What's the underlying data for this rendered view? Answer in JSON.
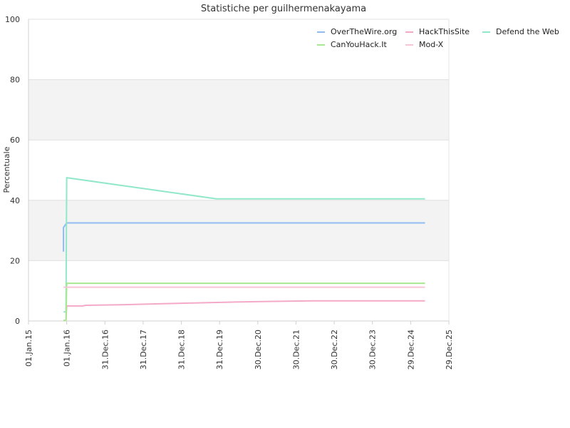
{
  "chart_data": {
    "type": "line",
    "title": "Statistiche per guilhermenakayama",
    "ylabel": "Percentuale",
    "xlabel": "",
    "ylim": [
      0,
      100
    ],
    "yticks": [
      0,
      20,
      40,
      60,
      80,
      100
    ],
    "xlim": [
      "2015-01-01",
      "2025-12-29"
    ],
    "xticks": [
      {
        "date": "2015-01-01",
        "label": "01.Jan.15"
      },
      {
        "date": "2016-01-01",
        "label": "01.Jan.16"
      },
      {
        "date": "2016-12-31",
        "label": "31.Dec.16"
      },
      {
        "date": "2017-12-31",
        "label": "31.Dec.17"
      },
      {
        "date": "2018-12-31",
        "label": "31.Dec.18"
      },
      {
        "date": "2019-12-31",
        "label": "31.Dec.19"
      },
      {
        "date": "2020-12-30",
        "label": "30.Dec.20"
      },
      {
        "date": "2021-12-30",
        "label": "30.Dec.21"
      },
      {
        "date": "2022-12-30",
        "label": "30.Dec.22"
      },
      {
        "date": "2023-12-30",
        "label": "30.Dec.23"
      },
      {
        "date": "2024-12-29",
        "label": "29.Dec.24"
      },
      {
        "date": "2025-12-29",
        "label": "29.Dec.25"
      }
    ],
    "grid": true,
    "alternate_bands": true,
    "band_color": "#f3f3f3",
    "legend_position": "top-right",
    "series": [
      {
        "name": "OverTheWire.org",
        "color": "#8fbbf0",
        "points": [
          [
            "2015-12-01",
            23.0
          ],
          [
            "2015-12-01",
            31.0
          ],
          [
            "2016-01-01",
            32.5
          ],
          [
            "2025-05-15",
            32.5
          ]
        ]
      },
      {
        "name": "HackThisSite",
        "color": "#f4a9c8",
        "points": [
          [
            "2015-12-01",
            0.2
          ],
          [
            "2015-12-25",
            0.2
          ],
          [
            "2016-01-01",
            5.0
          ],
          [
            "2016-06-01",
            5.0
          ],
          [
            "2016-07-01",
            5.2
          ],
          [
            "2017-06-01",
            5.4
          ],
          [
            "2018-06-01",
            5.7
          ],
          [
            "2019-06-01",
            6.0
          ],
          [
            "2020-06-01",
            6.3
          ],
          [
            "2021-06-01",
            6.5
          ],
          [
            "2022-06-01",
            6.7
          ],
          [
            "2025-05-15",
            6.7
          ]
        ]
      },
      {
        "name": "Defend the Web",
        "color": "#90e8c8",
        "points": [
          [
            "2015-12-01",
            3.0
          ],
          [
            "2015-12-25",
            3.0
          ],
          [
            "2016-01-01",
            47.5
          ],
          [
            "2019-12-01",
            40.5
          ],
          [
            "2025-05-15",
            40.5
          ]
        ]
      },
      {
        "name": "CanYouHack.It",
        "color": "#a8e890",
        "points": [
          [
            "2015-12-01",
            0.2
          ],
          [
            "2015-12-25",
            0.2
          ],
          [
            "2016-01-01",
            12.5
          ],
          [
            "2025-05-15",
            12.5
          ]
        ]
      },
      {
        "name": "Mod-X",
        "color": "#f8c4d8",
        "points": [
          [
            "2015-12-01",
            11.2
          ],
          [
            "2025-05-15",
            11.2
          ]
        ]
      }
    ]
  }
}
